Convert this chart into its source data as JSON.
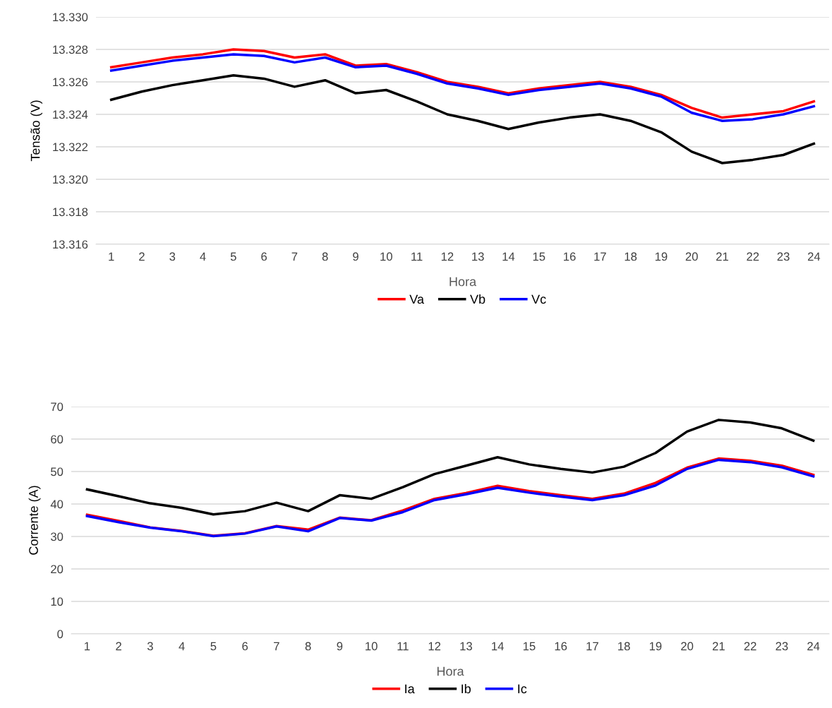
{
  "chart_data": [
    {
      "type": "line",
      "xlabel": "Hora",
      "ylabel": "Tensão (V)",
      "categories": [
        "1",
        "2",
        "3",
        "4",
        "5",
        "6",
        "7",
        "8",
        "9",
        "10",
        "11",
        "12",
        "13",
        "14",
        "15",
        "16",
        "17",
        "18",
        "19",
        "20",
        "21",
        "22",
        "23",
        "24"
      ],
      "series": [
        {
          "name": "Va",
          "color": "#ff0000",
          "values": [
            13.3269,
            13.3272,
            13.3275,
            13.3277,
            13.328,
            13.3279,
            13.3275,
            13.3277,
            13.327,
            13.3271,
            13.3266,
            13.326,
            13.3257,
            13.3253,
            13.3256,
            13.3258,
            13.326,
            13.3257,
            13.3252,
            13.3244,
            13.3238,
            13.324,
            13.3242,
            13.3248
          ]
        },
        {
          "name": "Vb",
          "color": "#000000",
          "values": [
            13.3249,
            13.3254,
            13.3258,
            13.3261,
            13.3264,
            13.3262,
            13.3257,
            13.3261,
            13.3253,
            13.3255,
            13.3248,
            13.324,
            13.3236,
            13.3231,
            13.3235,
            13.3238,
            13.324,
            13.3236,
            13.3229,
            13.3217,
            13.321,
            13.3212,
            13.3215,
            13.3222
          ]
        },
        {
          "name": "Vc",
          "color": "#0000ff",
          "values": [
            13.3267,
            13.327,
            13.3273,
            13.3275,
            13.3277,
            13.3276,
            13.3272,
            13.3275,
            13.3269,
            13.327,
            13.3265,
            13.3259,
            13.3256,
            13.3252,
            13.3255,
            13.3257,
            13.3259,
            13.3256,
            13.3251,
            13.3241,
            13.3236,
            13.3237,
            13.324,
            13.3245
          ]
        }
      ],
      "ylim": [
        13.316,
        13.33
      ],
      "yticks": [
        13.316,
        13.318,
        {
          "value": 13.32,
          "label": "13.320"
        },
        13.322,
        13.324,
        13.326,
        13.328,
        {
          "value": 13.33,
          "label": "13.330"
        }
      ],
      "grid": "y",
      "legend": "bottom",
      "marker": "none",
      "line_style": "solid"
    },
    {
      "type": "line",
      "xlabel": "Hora",
      "ylabel": "Corrente (A)",
      "categories": [
        "1",
        "2",
        "3",
        "4",
        "5",
        "6",
        "7",
        "8",
        "9",
        "10",
        "11",
        "12",
        "13",
        "14",
        "15",
        "16",
        "17",
        "18",
        "19",
        "20",
        "21",
        "22",
        "23",
        "24"
      ],
      "series": [
        {
          "name": "Ia",
          "color": "#ff0000",
          "values": [
            36.7,
            34.8,
            32.8,
            31.7,
            30.2,
            31.0,
            33.2,
            32.1,
            35.8,
            35.0,
            38.0,
            41.6,
            43.4,
            45.6,
            44.0,
            42.7,
            41.6,
            43.2,
            46.5,
            51.2,
            54.0,
            53.3,
            51.8,
            49.0
          ]
        },
        {
          "name": "Ib",
          "color": "#000000",
          "values": [
            44.5,
            42.4,
            40.2,
            38.8,
            36.8,
            37.8,
            40.4,
            37.8,
            42.7,
            41.6,
            45.2,
            49.2,
            51.8,
            54.4,
            52.2,
            50.8,
            49.7,
            51.5,
            55.7,
            62.3,
            65.9,
            65.1,
            63.3,
            59.5
          ]
        },
        {
          "name": "Ic",
          "color": "#0000ff",
          "values": [
            36.3,
            34.4,
            32.7,
            31.6,
            30.1,
            30.9,
            33.1,
            31.6,
            35.7,
            34.9,
            37.5,
            41.2,
            43.0,
            45.0,
            43.5,
            42.3,
            41.2,
            42.7,
            45.7,
            50.8,
            53.6,
            52.9,
            51.3,
            48.5
          ]
        }
      ],
      "ylim": [
        0,
        70
      ],
      "yticks": [
        0,
        10,
        20,
        30,
        40,
        50,
        60,
        70
      ],
      "grid": "y",
      "legend": "bottom",
      "marker": "none",
      "line_style": "solid"
    }
  ]
}
